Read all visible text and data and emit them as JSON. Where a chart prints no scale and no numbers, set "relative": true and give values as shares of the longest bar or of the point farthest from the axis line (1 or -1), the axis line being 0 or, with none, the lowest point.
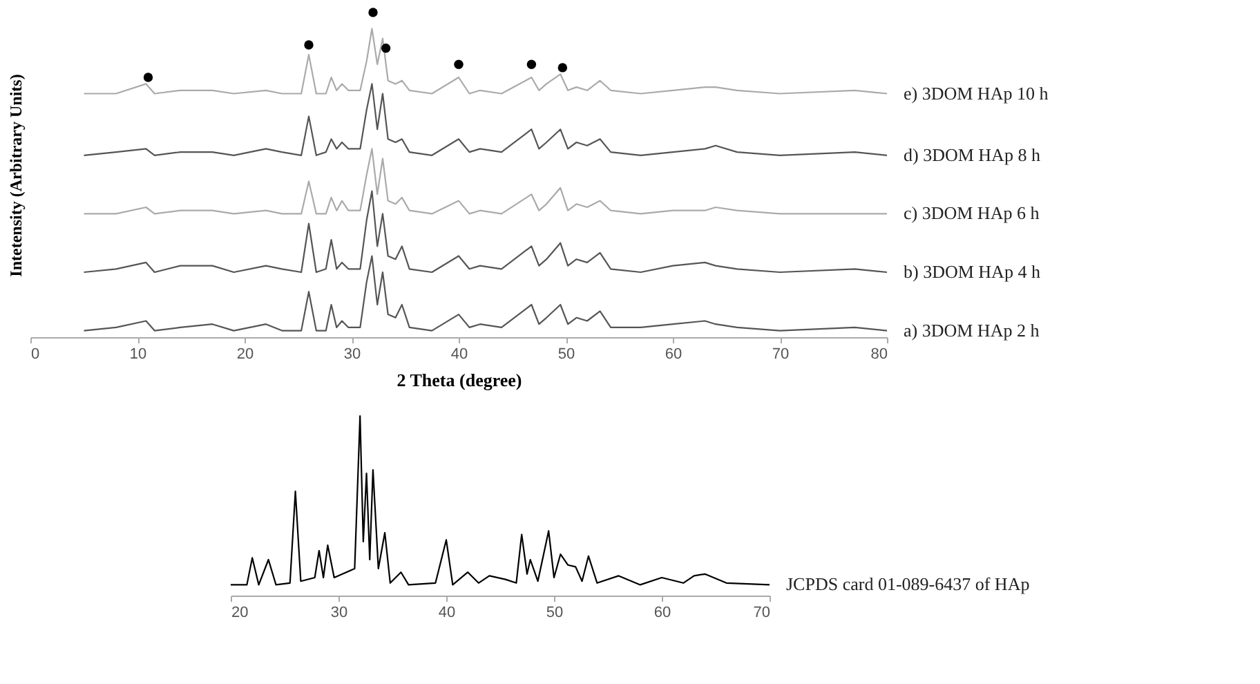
{
  "chart_data": [
    {
      "type": "line",
      "ylabel": "Intetensity (Arbitrary Units)",
      "xlabel": "2 Theta (degree)",
      "xlim": [
        0,
        80
      ],
      "xticks": [
        0,
        10,
        20,
        30,
        40,
        50,
        60,
        70,
        80
      ],
      "relative": true,
      "grid": false,
      "x": [
        5,
        8,
        10.8,
        11.6,
        14,
        17,
        19,
        22,
        23.5,
        25.3,
        26,
        26.7,
        27.6,
        28.1,
        28.6,
        29.1,
        29.7,
        30.8,
        31.4,
        31.9,
        32.4,
        32.9,
        33.4,
        34.1,
        34.7,
        35.4,
        37.5,
        40,
        41,
        42,
        44,
        46.8,
        47.5,
        48.2,
        49.5,
        50.2,
        51,
        52,
        53.2,
        54.2,
        57,
        60,
        63,
        64,
        66,
        70,
        77,
        80
      ],
      "series": [
        {
          "name": "a) 3DOM HAp 2 h",
          "color": "#555555",
          "values": [
            0.02,
            0.03,
            0.05,
            0.02,
            0.03,
            0.04,
            0.02,
            0.04,
            0.02,
            0.02,
            0.14,
            0.02,
            0.02,
            0.1,
            0.03,
            0.05,
            0.03,
            0.03,
            0.17,
            0.25,
            0.1,
            0.2,
            0.07,
            0.06,
            0.1,
            0.03,
            0.02,
            0.07,
            0.03,
            0.04,
            0.03,
            0.1,
            0.04,
            0.06,
            0.1,
            0.04,
            0.06,
            0.05,
            0.08,
            0.03,
            0.03,
            0.04,
            0.05,
            0.04,
            0.03,
            0.02,
            0.03,
            0.02
          ]
        },
        {
          "name": "b) 3DOM HAp 4 h",
          "color": "#555555",
          "values": [
            0.2,
            0.21,
            0.23,
            0.2,
            0.22,
            0.22,
            0.2,
            0.22,
            0.21,
            0.2,
            0.35,
            0.2,
            0.21,
            0.3,
            0.21,
            0.23,
            0.21,
            0.21,
            0.36,
            0.45,
            0.28,
            0.38,
            0.25,
            0.24,
            0.28,
            0.21,
            0.2,
            0.25,
            0.21,
            0.22,
            0.21,
            0.28,
            0.22,
            0.24,
            0.29,
            0.22,
            0.24,
            0.23,
            0.26,
            0.21,
            0.2,
            0.22,
            0.23,
            0.22,
            0.21,
            0.2,
            0.21,
            0.2
          ]
        },
        {
          "name": "c) 3DOM HAp 6 h",
          "color": "#aaaaaa",
          "values": [
            0.38,
            0.38,
            0.4,
            0.38,
            0.39,
            0.39,
            0.38,
            0.39,
            0.38,
            0.38,
            0.48,
            0.38,
            0.38,
            0.43,
            0.39,
            0.42,
            0.39,
            0.39,
            0.5,
            0.58,
            0.44,
            0.55,
            0.42,
            0.41,
            0.43,
            0.39,
            0.38,
            0.42,
            0.38,
            0.39,
            0.38,
            0.44,
            0.39,
            0.41,
            0.46,
            0.39,
            0.41,
            0.4,
            0.42,
            0.39,
            0.38,
            0.39,
            0.39,
            0.4,
            0.39,
            0.38,
            0.38,
            0.38
          ]
        },
        {
          "name": "d) 3DOM HAp 8 h",
          "color": "#555555",
          "values": [
            0.56,
            0.57,
            0.58,
            0.56,
            0.57,
            0.57,
            0.56,
            0.58,
            0.57,
            0.56,
            0.68,
            0.56,
            0.57,
            0.61,
            0.58,
            0.6,
            0.58,
            0.58,
            0.7,
            0.78,
            0.64,
            0.75,
            0.61,
            0.6,
            0.61,
            0.57,
            0.56,
            0.61,
            0.57,
            0.58,
            0.57,
            0.64,
            0.58,
            0.6,
            0.64,
            0.58,
            0.6,
            0.59,
            0.61,
            0.57,
            0.56,
            0.57,
            0.58,
            0.59,
            0.57,
            0.56,
            0.57,
            0.56
          ]
        },
        {
          "name": "e) 3DOM HAp 10 h",
          "color": "#aaaaaa",
          "values": [
            0.75,
            0.75,
            0.78,
            0.75,
            0.76,
            0.76,
            0.75,
            0.76,
            0.75,
            0.75,
            0.87,
            0.75,
            0.75,
            0.8,
            0.76,
            0.78,
            0.76,
            0.76,
            0.85,
            0.95,
            0.84,
            0.92,
            0.79,
            0.78,
            0.79,
            0.76,
            0.75,
            0.8,
            0.75,
            0.76,
            0.75,
            0.8,
            0.76,
            0.78,
            0.81,
            0.76,
            0.77,
            0.76,
            0.79,
            0.76,
            0.75,
            0.76,
            0.77,
            0.77,
            0.76,
            0.75,
            0.76,
            0.75
          ]
        },
        {
          "type": "scatter",
          "marker": "circle",
          "color": "#000000",
          "x": [
            11,
            26,
            32,
            33.2,
            40,
            46.8,
            49.7
          ],
          "values": [
            0.8,
            0.9,
            1,
            0.89,
            0.84,
            0.84,
            0.83
          ]
        }
      ]
    },
    {
      "type": "line",
      "xlim": [
        20,
        70
      ],
      "xticks": [
        20,
        30,
        40,
        50,
        60,
        70
      ],
      "relative": true,
      "grid": false,
      "x": [
        20,
        21.5,
        22,
        22.6,
        23.5,
        24.2,
        25.5,
        26,
        26.5,
        27.8,
        28.2,
        28.6,
        29,
        29.6,
        31.5,
        32,
        32.3,
        32.6,
        32.9,
        33.2,
        33.7,
        34.3,
        34.8,
        35.8,
        36.5,
        39,
        40,
        40.6,
        42,
        43,
        44,
        45.5,
        46.5,
        47,
        47.5,
        47.8,
        48.5,
        49.5,
        50,
        50.6,
        51.3,
        52,
        52.6,
        53.2,
        54,
        56,
        58,
        60,
        62,
        63,
        64,
        66,
        70
      ],
      "series": [
        {
          "name": "JCPDS card 01-089-6437 of HAp",
          "color": "#000000",
          "values": [
            0.06,
            0.06,
            0.21,
            0.06,
            0.2,
            0.06,
            0.07,
            0.58,
            0.08,
            0.1,
            0.25,
            0.1,
            0.28,
            0.1,
            0.15,
            1,
            0.3,
            0.68,
            0.2,
            0.7,
            0.15,
            0.35,
            0.07,
            0.13,
            0.06,
            0.07,
            0.31,
            0.06,
            0.13,
            0.07,
            0.11,
            0.09,
            0.07,
            0.34,
            0.12,
            0.2,
            0.08,
            0.36,
            0.1,
            0.23,
            0.17,
            0.16,
            0.08,
            0.22,
            0.07,
            0.11,
            0.06,
            0.1,
            0.07,
            0.11,
            0.12,
            0.07,
            0.06
          ]
        }
      ]
    }
  ]
}
